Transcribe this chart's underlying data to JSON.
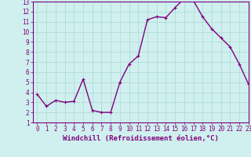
{
  "x": [
    0,
    1,
    2,
    3,
    4,
    5,
    6,
    7,
    8,
    9,
    10,
    11,
    12,
    13,
    14,
    15,
    16,
    17,
    18,
    19,
    20,
    21,
    22,
    23
  ],
  "y": [
    3.8,
    2.6,
    3.2,
    3.0,
    3.1,
    5.3,
    2.2,
    2.0,
    2.0,
    5.0,
    6.8,
    7.6,
    11.2,
    11.5,
    11.4,
    12.4,
    13.3,
    13.1,
    11.5,
    10.3,
    9.4,
    8.5,
    6.8,
    4.8
  ],
  "line_color": "#800080",
  "marker": "+",
  "marker_size": 3,
  "background_color": "#cff0ee",
  "grid_color": "#aad8d4",
  "xlabel": "Windchill (Refroidissement éolien,°C)",
  "xlim": [
    -0.5,
    23
  ],
  "ylim": [
    1,
    13
  ],
  "yticks": [
    1,
    2,
    3,
    4,
    5,
    6,
    7,
    8,
    9,
    10,
    11,
    12,
    13
  ],
  "xticks": [
    0,
    1,
    2,
    3,
    4,
    5,
    6,
    7,
    8,
    9,
    10,
    11,
    12,
    13,
    14,
    15,
    16,
    17,
    18,
    19,
    20,
    21,
    22,
    23
  ],
  "tick_fontsize": 5.5,
  "xlabel_fontsize": 6.5,
  "linewidth": 1.0,
  "markeredgewidth": 0.8
}
